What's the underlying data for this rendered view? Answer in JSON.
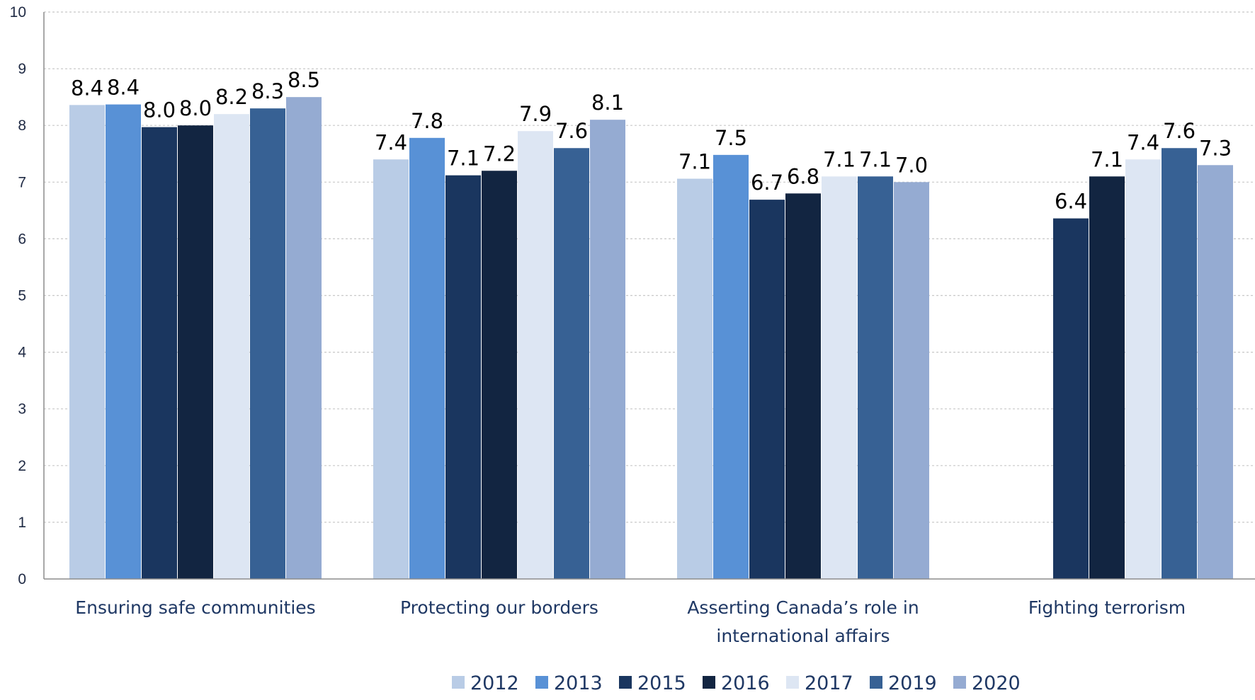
{
  "chart_data": {
    "type": "bar",
    "categories": [
      [
        "Ensuring safe communities"
      ],
      [
        "Protecting our borders"
      ],
      [
        "Asserting Canada’s role in",
        "international affairs"
      ],
      [
        "Fighting terrorism"
      ]
    ],
    "series": [
      {
        "name": "2012",
        "color": "#b9cce6",
        "values": [
          8.36,
          7.4,
          7.06,
          null
        ],
        "labels": [
          "8.4",
          "7.4",
          "7.1",
          null
        ]
      },
      {
        "name": "2013",
        "color": "#5891d6",
        "values": [
          8.37,
          7.78,
          7.48,
          null
        ],
        "labels": [
          "8.4",
          "7.8",
          "7.5",
          null
        ]
      },
      {
        "name": "2015",
        "color": "#1a365f",
        "values": [
          7.97,
          7.12,
          6.69,
          6.36
        ],
        "labels": [
          "8.0",
          "7.1",
          "6.7",
          "6.4"
        ]
      },
      {
        "name": "2016",
        "color": "#122541",
        "values": [
          8.0,
          7.2,
          6.8,
          7.1
        ],
        "labels": [
          "8.0",
          "7.2",
          "6.8",
          "7.1"
        ]
      },
      {
        "name": "2017",
        "color": "#dde6f3",
        "values": [
          8.2,
          7.9,
          7.1,
          7.4
        ],
        "labels": [
          "8.2",
          "7.9",
          "7.1",
          "7.4"
        ]
      },
      {
        "name": "2019",
        "color": "#376194",
        "values": [
          8.3,
          7.6,
          7.1,
          7.6
        ],
        "labels": [
          "8.3",
          "7.6",
          "7.1",
          "7.6"
        ]
      },
      {
        "name": "2020",
        "color": "#95abd2",
        "values": [
          8.5,
          8.1,
          7.0,
          7.3
        ],
        "labels": [
          "8.5",
          "8.1",
          "7.0",
          "7.3"
        ]
      }
    ],
    "ylim": [
      0,
      10
    ],
    "yticks": [
      "0",
      "1",
      "2",
      "3",
      "4",
      "5",
      "6",
      "7",
      "8",
      "9",
      "10"
    ],
    "grid": true,
    "legend_position": "bottom",
    "title": "",
    "xlabel": "",
    "ylabel": ""
  }
}
